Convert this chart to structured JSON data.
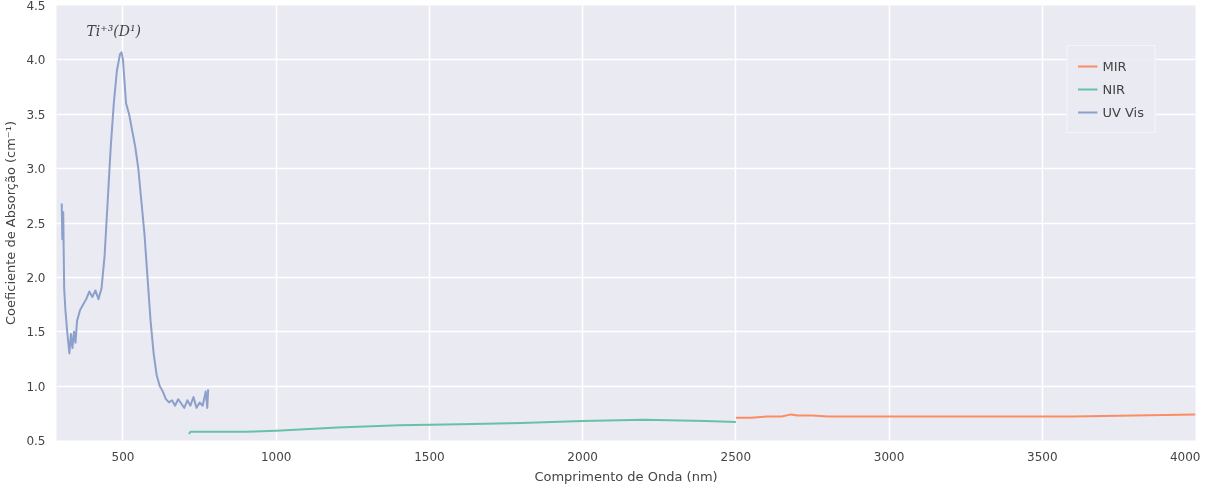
{
  "chart_data": {
    "type": "line",
    "xlabel": "Comprimento de Onda (nm)",
    "ylabel": "Coeficiente de Absorção (cm⁻¹)",
    "xlim": [
      283,
      4000
    ],
    "ylim": [
      0.5,
      4.5
    ],
    "xticks": [
      500,
      1000,
      1500,
      2000,
      2500,
      3000,
      3500,
      4000
    ],
    "yticks": [
      0.5,
      {
        "value": 1,
        "label": "1.0"
      },
      1.5,
      {
        "value": 2,
        "label": "2.0"
      },
      2.5,
      {
        "value": 3,
        "label": "3.0"
      },
      3.5,
      {
        "value": 4,
        "label": "4.0"
      },
      4.5
    ],
    "grid": true,
    "legend": "top right",
    "annotations": [
      "Ti⁺³(D¹)"
    ],
    "series": [
      {
        "name": "MIR",
        "color": "#fc8d62",
        "x": [
          2500,
          2550,
          2600,
          2650,
          2680,
          2700,
          2750,
          2800,
          3000,
          3200,
          3400,
          3450,
          3500,
          3600,
          3800,
          4000
        ],
        "values": [
          0.71,
          0.71,
          0.72,
          0.72,
          0.74,
          0.73,
          0.73,
          0.72,
          0.72,
          0.72,
          0.72,
          0.72,
          0.72,
          0.72,
          0.73,
          0.74
        ]
      },
      {
        "name": "NIR",
        "color": "#66c2a5",
        "x": [
          715,
          720,
          800,
          900,
          1000,
          1200,
          1400,
          1600,
          1800,
          2000,
          2200,
          2400,
          2500
        ],
        "values": [
          0.56,
          0.58,
          0.58,
          0.58,
          0.59,
          0.62,
          0.64,
          0.65,
          0.66,
          0.68,
          0.69,
          0.68,
          0.67
        ]
      },
      {
        "name": "UV Vis",
        "color": "#8da0cb",
        "x": [
          300,
          302,
          305,
          308,
          312,
          318,
          325,
          330,
          335,
          340,
          345,
          350,
          360,
          370,
          380,
          390,
          400,
          410,
          420,
          430,
          440,
          450,
          460,
          470,
          480,
          490,
          495,
          500,
          510,
          520,
          530,
          540,
          550,
          560,
          570,
          580,
          590,
          600,
          610,
          620,
          630,
          640,
          650,
          660,
          670,
          680,
          690,
          700,
          710,
          720,
          730,
          740,
          750,
          760,
          770,
          775,
          778
        ],
        "values": [
          2.68,
          2.35,
          2.6,
          1.9,
          1.7,
          1.5,
          1.3,
          1.48,
          1.35,
          1.5,
          1.4,
          1.6,
          1.7,
          1.75,
          1.8,
          1.87,
          1.82,
          1.88,
          1.8,
          1.9,
          2.2,
          2.7,
          3.2,
          3.6,
          3.9,
          4.05,
          4.07,
          4.0,
          3.6,
          3.5,
          3.35,
          3.2,
          3.0,
          2.7,
          2.4,
          2.0,
          1.6,
          1.3,
          1.1,
          1.0,
          0.95,
          0.88,
          0.85,
          0.87,
          0.82,
          0.88,
          0.84,
          0.8,
          0.87,
          0.82,
          0.9,
          0.8,
          0.85,
          0.82,
          0.95,
          0.8,
          0.97
        ]
      }
    ]
  }
}
